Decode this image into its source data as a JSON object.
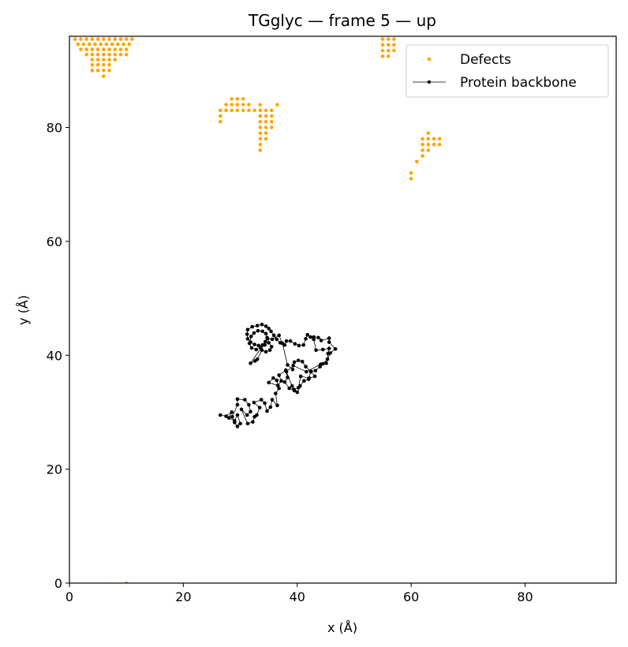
{
  "chart_data": {
    "type": "scatter",
    "title": "TGglyc — frame 5 — up",
    "xlabel": "x (Å)",
    "ylabel": "y (Å)",
    "xlim": [
      0,
      96
    ],
    "ylim": [
      0,
      96
    ],
    "xticks": [
      0,
      20,
      40,
      60,
      80
    ],
    "yticks": [
      0,
      20,
      40,
      60,
      80
    ],
    "grid": false,
    "legend_position": "top-right",
    "series": [
      {
        "name": "Defects",
        "kind": "scatter",
        "color": "#ffa500",
        "points": [
          [
            1,
            95.5
          ],
          [
            2,
            95.5
          ],
          [
            3,
            95.5
          ],
          [
            4,
            95.5
          ],
          [
            5,
            95.5
          ],
          [
            6,
            95.5
          ],
          [
            7,
            95.5
          ],
          [
            8,
            95.5
          ],
          [
            9,
            95.5
          ],
          [
            10,
            95.5
          ],
          [
            11,
            95.5
          ],
          [
            1.5,
            94.6
          ],
          [
            2.5,
            94.6
          ],
          [
            3.5,
            94.6
          ],
          [
            4.5,
            94.6
          ],
          [
            5.5,
            94.6
          ],
          [
            6.5,
            94.6
          ],
          [
            7.5,
            94.6
          ],
          [
            8.5,
            94.6
          ],
          [
            9.5,
            94.6
          ],
          [
            10.5,
            94.6
          ],
          [
            2,
            93.7
          ],
          [
            3,
            93.7
          ],
          [
            4,
            93.7
          ],
          [
            5,
            93.7
          ],
          [
            6,
            93.7
          ],
          [
            7,
            93.7
          ],
          [
            8,
            93.7
          ],
          [
            9,
            93.7
          ],
          [
            10,
            93.7
          ],
          [
            3,
            92.8
          ],
          [
            4,
            92.8
          ],
          [
            5,
            92.8
          ],
          [
            6,
            92.8
          ],
          [
            7,
            92.8
          ],
          [
            8,
            92.8
          ],
          [
            9,
            92.8
          ],
          [
            10,
            92.8
          ],
          [
            4,
            91.9
          ],
          [
            5,
            91.9
          ],
          [
            6,
            91.9
          ],
          [
            7,
            91.9
          ],
          [
            8,
            91.9
          ],
          [
            4,
            91
          ],
          [
            5,
            91
          ],
          [
            6,
            91
          ],
          [
            7,
            91
          ],
          [
            4,
            90
          ],
          [
            5,
            90
          ],
          [
            6,
            90
          ],
          [
            7,
            90
          ],
          [
            6,
            89
          ],
          [
            55,
            95.5
          ],
          [
            56,
            95.5
          ],
          [
            57,
            95.5
          ],
          [
            55,
            94.5
          ],
          [
            56,
            94.5
          ],
          [
            57,
            94.5
          ],
          [
            55,
            93.5
          ],
          [
            56,
            93.5
          ],
          [
            57,
            93.5
          ],
          [
            55,
            92.5
          ],
          [
            56,
            92.5
          ],
          [
            26.5,
            83
          ],
          [
            27.5,
            84
          ],
          [
            28.5,
            85
          ],
          [
            29.5,
            85
          ],
          [
            30.5,
            85
          ],
          [
            28.5,
            84
          ],
          [
            29.5,
            84
          ],
          [
            30.5,
            84
          ],
          [
            31.5,
            84
          ],
          [
            27.5,
            83
          ],
          [
            28.5,
            83
          ],
          [
            29.5,
            83
          ],
          [
            30.5,
            83
          ],
          [
            31.5,
            83
          ],
          [
            32.5,
            83
          ],
          [
            26.5,
            82
          ],
          [
            26.5,
            81
          ],
          [
            33.5,
            84
          ],
          [
            34.5,
            83
          ],
          [
            35.5,
            83
          ],
          [
            36.5,
            84
          ],
          [
            33.5,
            83
          ],
          [
            33.5,
            82
          ],
          [
            34.5,
            82
          ],
          [
            35.5,
            82
          ],
          [
            33.5,
            81
          ],
          [
            34.5,
            81
          ],
          [
            35.5,
            81
          ],
          [
            33.5,
            80
          ],
          [
            34.5,
            80
          ],
          [
            35.5,
            80
          ],
          [
            33.5,
            79
          ],
          [
            34.5,
            79
          ],
          [
            33.5,
            78
          ],
          [
            34.5,
            78
          ],
          [
            33.5,
            77
          ],
          [
            33.5,
            76
          ],
          [
            60,
            72
          ],
          [
            60,
            71
          ],
          [
            61,
            74
          ],
          [
            62,
            75
          ],
          [
            62,
            76
          ],
          [
            63,
            76
          ],
          [
            62,
            77
          ],
          [
            63,
            77
          ],
          [
            64,
            77
          ],
          [
            65,
            77
          ],
          [
            62,
            78
          ],
          [
            63,
            78
          ],
          [
            64,
            78
          ],
          [
            65,
            78
          ],
          [
            63,
            79
          ],
          [
            10,
            0
          ]
        ]
      },
      {
        "name": "Protein backbone",
        "kind": "line-markers",
        "color": "#000000",
        "points": [
          [
            26.5,
            29.5
          ],
          [
            27.5,
            29.3
          ],
          [
            28.5,
            30
          ],
          [
            28,
            29
          ],
          [
            29,
            28.5
          ],
          [
            29.5,
            29.5
          ],
          [
            30,
            28
          ],
          [
            29.5,
            27.5
          ],
          [
            29,
            28.2
          ],
          [
            28.6,
            29.2
          ],
          [
            29.5,
            31.3
          ],
          [
            29.5,
            32.3
          ],
          [
            30.8,
            32.2
          ],
          [
            31.5,
            31.3
          ],
          [
            31.8,
            30.1
          ],
          [
            31.2,
            29.5
          ],
          [
            30.2,
            30.5
          ],
          [
            31.3,
            28
          ],
          [
            32.2,
            28.3
          ],
          [
            32.5,
            29.2
          ],
          [
            32.9,
            29.5
          ],
          [
            33.4,
            30.8
          ],
          [
            32.4,
            31.7
          ],
          [
            33.7,
            32.2
          ],
          [
            34.3,
            31.6
          ],
          [
            34.7,
            30.2
          ],
          [
            35.3,
            30.9
          ],
          [
            35.6,
            32.2
          ],
          [
            36.5,
            31.2
          ],
          [
            36.2,
            33.3
          ],
          [
            36.8,
            34.2
          ],
          [
            36.4,
            35.6
          ],
          [
            35.8,
            36
          ],
          [
            35,
            35.2
          ],
          [
            36.6,
            34.7
          ],
          [
            37.2,
            35.5
          ],
          [
            36.8,
            36.5
          ],
          [
            38,
            37.4
          ],
          [
            38.3,
            36.1
          ],
          [
            37.8,
            35.3
          ],
          [
            38.6,
            34.2
          ],
          [
            39.5,
            33.8
          ],
          [
            40,
            33.5
          ],
          [
            40.5,
            34.6
          ],
          [
            41.2,
            35.5
          ],
          [
            42,
            35.8
          ],
          [
            42.4,
            37.2
          ],
          [
            43.2,
            37.3
          ],
          [
            44,
            38
          ],
          [
            44.5,
            38.5
          ],
          [
            45.3,
            39.3
          ],
          [
            45.4,
            40.3
          ],
          [
            45.6,
            41.2
          ],
          [
            44.5,
            41
          ],
          [
            43.3,
            40.9
          ],
          [
            42.9,
            42.8
          ],
          [
            42.3,
            43.2
          ],
          [
            41.8,
            43.6
          ],
          [
            41.5,
            42.9
          ],
          [
            41.1,
            41.8
          ],
          [
            40.3,
            41.7
          ],
          [
            39.6,
            42
          ],
          [
            38.8,
            42.5
          ],
          [
            38.1,
            42.5
          ],
          [
            37.8,
            41.8
          ],
          [
            37,
            42.2
          ],
          [
            36.4,
            42.8
          ],
          [
            35.9,
            43.5
          ],
          [
            35.4,
            44.2
          ],
          [
            35,
            44.7
          ],
          [
            34.5,
            45.1
          ],
          [
            33.8,
            45.4
          ],
          [
            33,
            45.2
          ],
          [
            32.1,
            45
          ],
          [
            31.3,
            44.5
          ],
          [
            31.2,
            43.7
          ],
          [
            31.3,
            42.9
          ],
          [
            31.8,
            42.3
          ],
          [
            32.5,
            41.9
          ],
          [
            33.2,
            41.7
          ],
          [
            33.9,
            41.8
          ],
          [
            34.4,
            42.4
          ],
          [
            34.7,
            43.1
          ],
          [
            34.5,
            43.8
          ],
          [
            33.9,
            44.2
          ],
          [
            33.1,
            44.3
          ],
          [
            32.4,
            43.9
          ],
          [
            31.9,
            43.3
          ],
          [
            31.6,
            42.1
          ],
          [
            32,
            41.3
          ],
          [
            32.8,
            41
          ],
          [
            33.6,
            41.3
          ],
          [
            34.3,
            41.8
          ],
          [
            35,
            42.2
          ],
          [
            35.5,
            41.5
          ],
          [
            35.2,
            40.9
          ],
          [
            34.5,
            40.6
          ],
          [
            33.8,
            40.9
          ],
          [
            33,
            39.3
          ],
          [
            32.6,
            39
          ],
          [
            31.8,
            38.6
          ],
          [
            34.8,
            42.9
          ],
          [
            35.6,
            42.8
          ],
          [
            36.8,
            43.5
          ],
          [
            37.4,
            42.1
          ],
          [
            38.3,
            38.3
          ],
          [
            39.2,
            37.5
          ],
          [
            39.5,
            38.8
          ],
          [
            40.2,
            39.1
          ],
          [
            40.9,
            38.9
          ],
          [
            41.5,
            38
          ],
          [
            42.4,
            37.1
          ],
          [
            43.1,
            36.3
          ],
          [
            42.1,
            36
          ],
          [
            40.6,
            36.3
          ],
          [
            40.2,
            34.3
          ],
          [
            39.4,
            34
          ],
          [
            39.1,
            34.6
          ],
          [
            38.1,
            37.1
          ],
          [
            39.3,
            38.2
          ],
          [
            41.6,
            37.1
          ],
          [
            44.1,
            38.4
          ],
          [
            45.1,
            38.6
          ],
          [
            45.8,
            40.4
          ],
          [
            46.7,
            41.1
          ],
          [
            45.6,
            42.3
          ],
          [
            45.6,
            43
          ],
          [
            44.2,
            42.6
          ],
          [
            43.7,
            43.1
          ],
          [
            42.9,
            43.2
          ]
        ]
      }
    ]
  }
}
